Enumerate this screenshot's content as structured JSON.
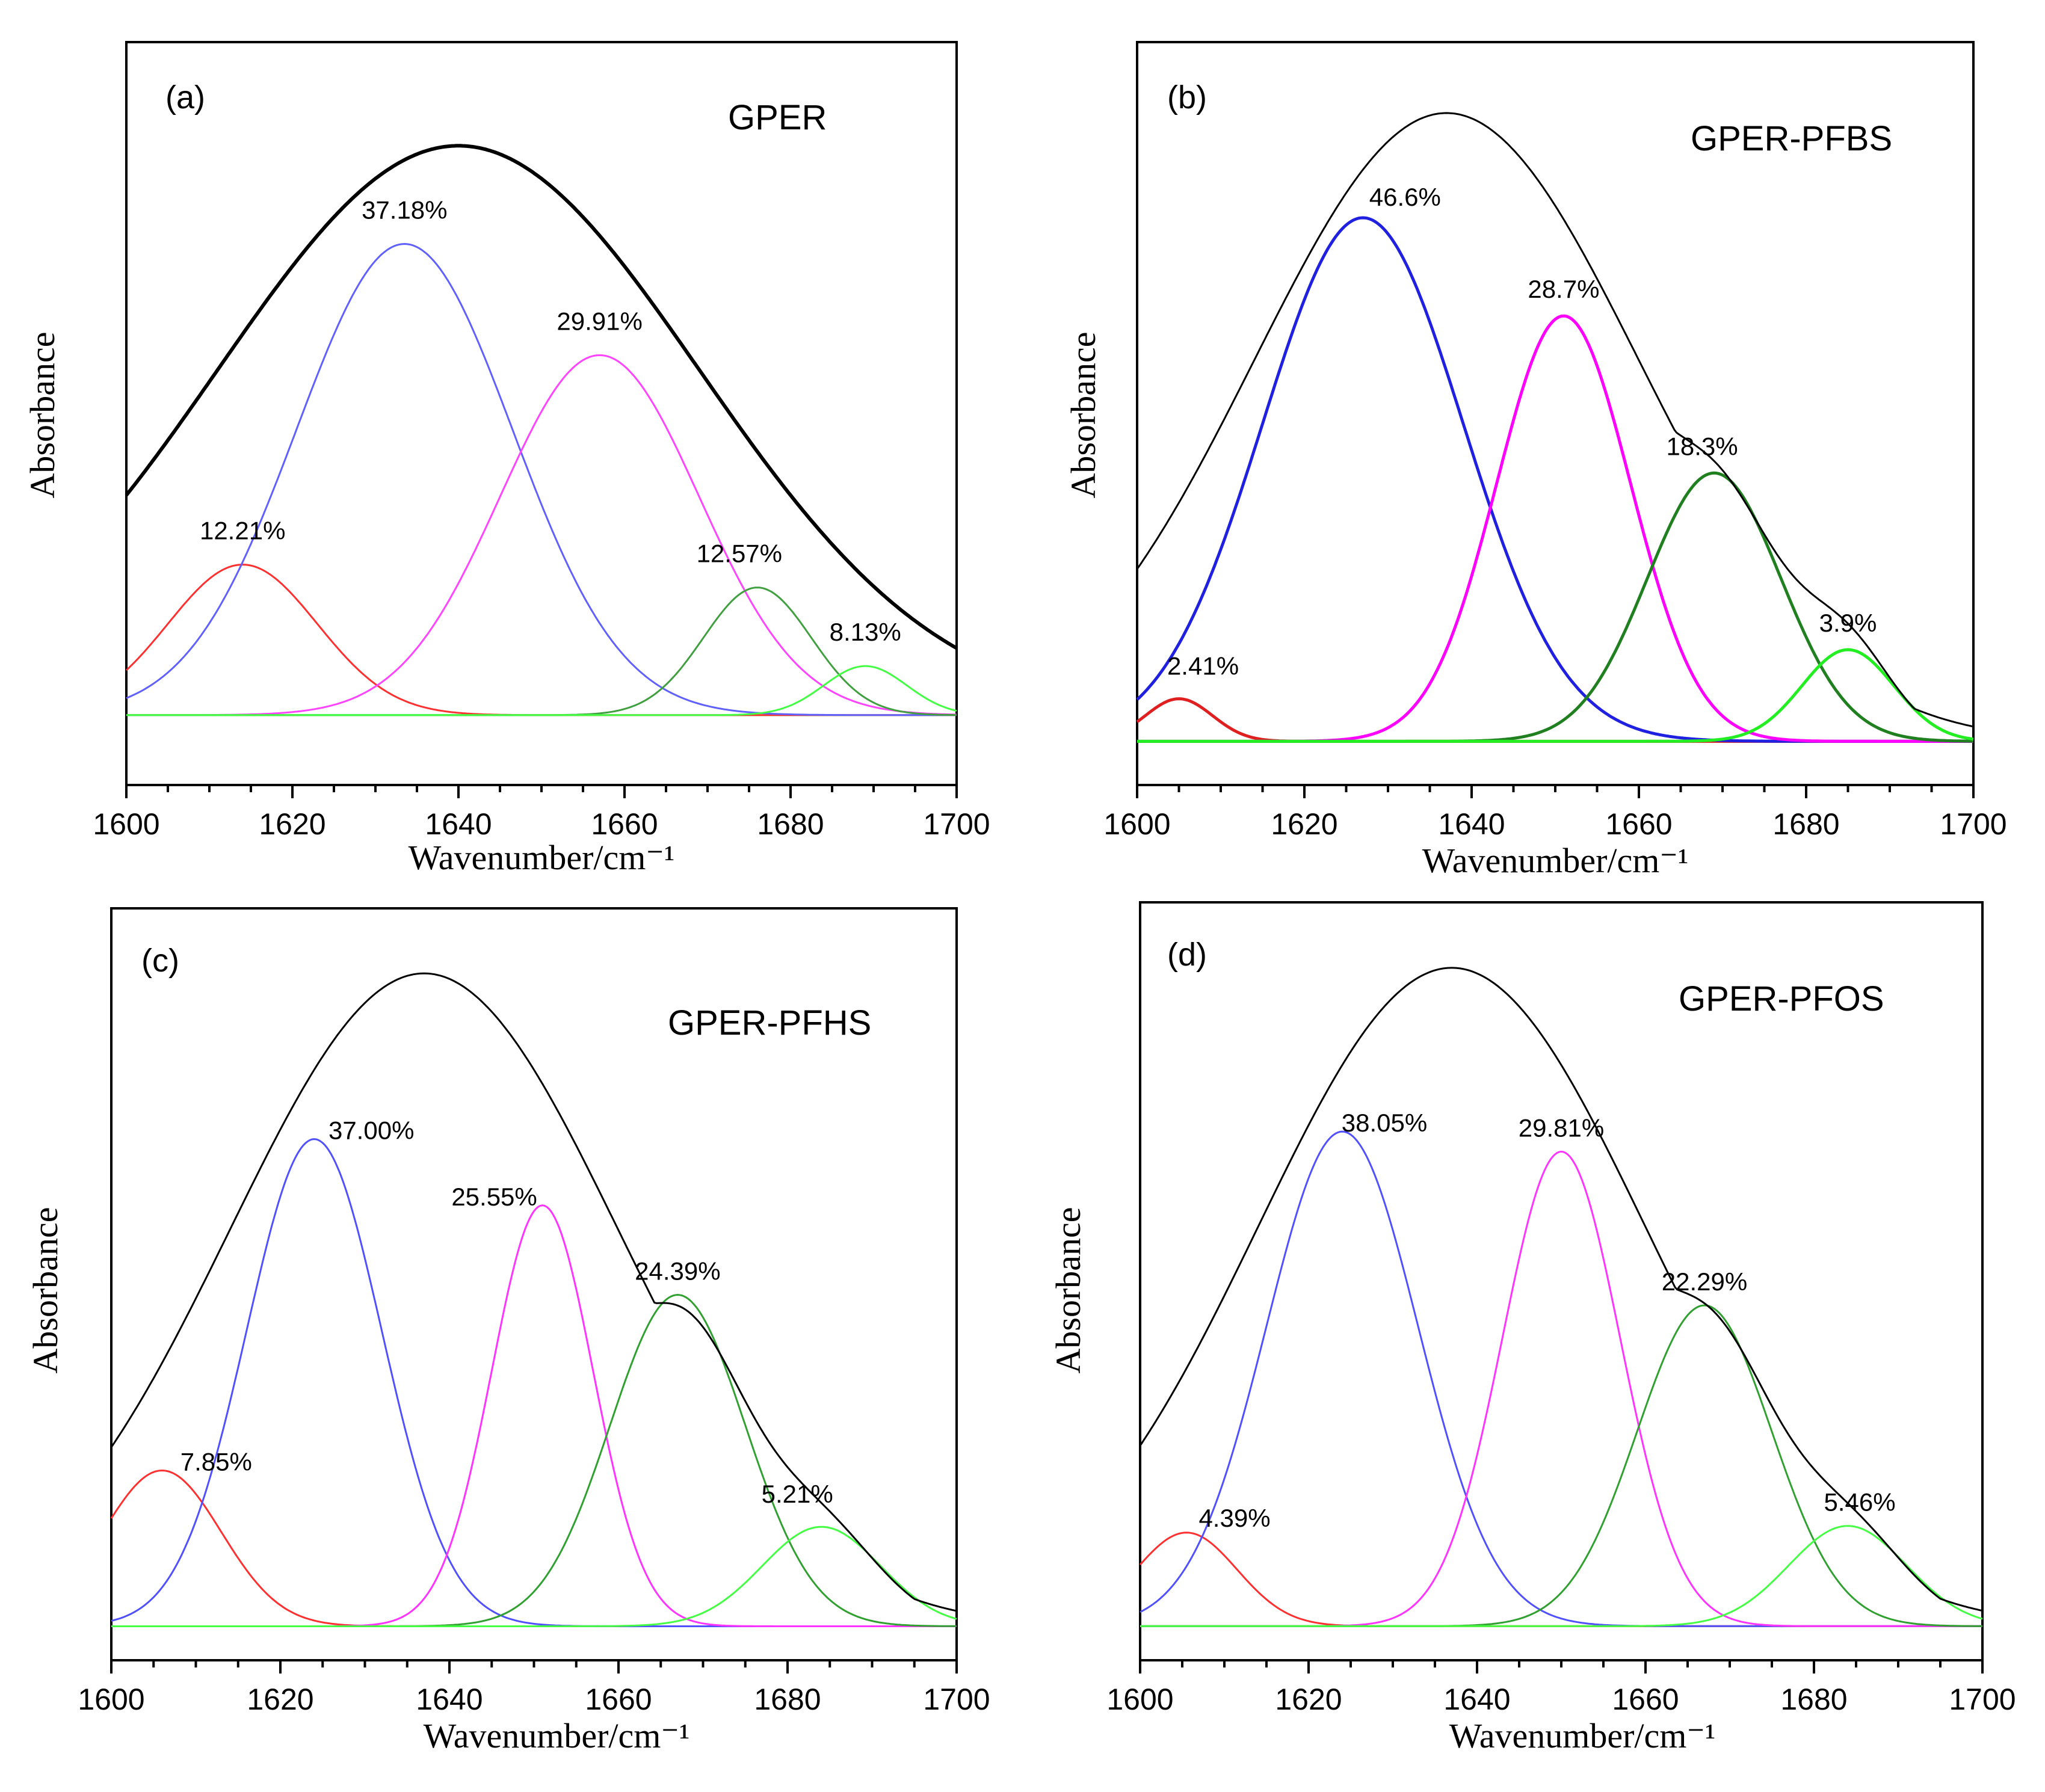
{
  "chart_data": [
    {
      "type": "line",
      "panel_label": "(a)",
      "title": "GPER",
      "xlabel": "Wavenumber/cm⁻¹",
      "ylabel": "Absorbance",
      "xlim": [
        1600,
        1700
      ],
      "xticks": [
        "1600",
        "1620",
        "1640",
        "1660",
        "1680",
        "1700"
      ],
      "ylim": [
        0,
        1.08
      ],
      "baseline": 0.07,
      "envelope": {
        "name": "envelope",
        "color": "#000000",
        "center": 1640,
        "height": 0.87,
        "width": 29,
        "extra_width_left": 0
      },
      "series": [
        {
          "name": "12.21%",
          "label": "12.21%",
          "center": 1614,
          "height": 0.23,
          "width": 9,
          "color": "#ff3030"
        },
        {
          "name": "37.18%",
          "label": "37.18%",
          "center": 1633.5,
          "height": 0.72,
          "width": 13,
          "color": "#6060ff"
        },
        {
          "name": "29.91%",
          "label": "29.91%",
          "center": 1657,
          "height": 0.55,
          "width": 12,
          "color": "#ff44ff"
        },
        {
          "name": "12.57%",
          "label": "12.57%",
          "center": 1676,
          "height": 0.195,
          "width": 6.5,
          "color": "#40a040"
        },
        {
          "name": "8.13%",
          "label": "8.13%",
          "center": 1689,
          "height": 0.075,
          "width": 5,
          "color": "#44ff44"
        }
      ]
    },
    {
      "type": "line",
      "panel_label": "(b)",
      "title": "GPER-PFBS",
      "xlabel": "Wavenumber/cm⁻¹",
      "ylabel": "Absorbance",
      "xlim": [
        1600,
        1700
      ],
      "xticks": [
        "1600",
        "1620",
        "1640",
        "1660",
        "1680",
        "1700"
      ],
      "ylim": [
        0,
        1.08
      ],
      "baseline": 0.03,
      "envelope": {
        "name": "envelope",
        "color": "#000000",
        "center": 1637,
        "height": 0.96,
        "width": 23,
        "extra_width_left": 0
      },
      "series": [
        {
          "name": "2.41%",
          "label": "2.41%",
          "center": 1605,
          "height": 0.065,
          "width": 4,
          "color": "#e02020"
        },
        {
          "name": "46.6%",
          "label": "46.6%",
          "center": 1627,
          "height": 0.8,
          "width": 12,
          "color": "#2020e0"
        },
        {
          "name": "28.7%",
          "label": "28.7%",
          "center": 1651,
          "height": 0.65,
          "width": 8,
          "color": "#ff00ff"
        },
        {
          "name": "18.3%",
          "label": "18.3%",
          "center": 1669,
          "height": 0.41,
          "width": 8,
          "color": "#208020"
        },
        {
          "name": "3.9%",
          "label": "3.9%",
          "center": 1685,
          "height": 0.14,
          "width": 5.5,
          "color": "#22ee22"
        }
      ]
    },
    {
      "type": "line",
      "panel_label": "(c)",
      "title": "GPER-PFHS",
      "xlabel": "Wavenumber/cm⁻¹",
      "ylabel": "Absorbance",
      "xlim": [
        1600,
        1700
      ],
      "xticks": [
        "1600",
        "1620",
        "1640",
        "1660",
        "1680",
        "1700"
      ],
      "ylim": [
        0,
        1.08
      ],
      "baseline": 0.015,
      "envelope": {
        "name": "envelope",
        "color": "#000000",
        "center": 1637,
        "height": 0.985,
        "width": 23,
        "extra_width_left": 0
      },
      "series": [
        {
          "name": "7.85%",
          "label": "7.85%",
          "center": 1606,
          "height": 0.235,
          "width": 7,
          "color": "#ff3030"
        },
        {
          "name": "37.00%",
          "label": "37.00%",
          "center": 1624,
          "height": 0.735,
          "width": 8,
          "color": "#5050ff"
        },
        {
          "name": "25.55%",
          "label": "25.55%",
          "center": 1651,
          "height": 0.635,
          "width": 6,
          "color": "#ff33ff"
        },
        {
          "name": "24.39%",
          "label": "24.39%",
          "center": 1667,
          "height": 0.5,
          "width": 8,
          "color": "#30a030"
        },
        {
          "name": "5.21%",
          "label": "5.21%",
          "center": 1684,
          "height": 0.15,
          "width": 7,
          "color": "#44ff44"
        }
      ]
    },
    {
      "type": "line",
      "panel_label": "(d)",
      "title": "GPER-PFOS",
      "xlabel": "Wavenumber/cm⁻¹",
      "ylabel": "Absorbance",
      "xlim": [
        1600,
        1700
      ],
      "xticks": [
        "1600",
        "1620",
        "1640",
        "1660",
        "1680",
        "1700"
      ],
      "ylim": [
        0,
        1.08
      ],
      "baseline": 0.015,
      "envelope": {
        "name": "envelope",
        "color": "#000000",
        "center": 1637,
        "height": 0.985,
        "width": 23,
        "extra_width_left": 0
      },
      "series": [
        {
          "name": "4.39%",
          "label": "4.39%",
          "center": 1605.5,
          "height": 0.14,
          "width": 6,
          "color": "#ff3030"
        },
        {
          "name": "38.05%",
          "label": "38.05%",
          "center": 1624,
          "height": 0.74,
          "width": 9,
          "color": "#5050ff"
        },
        {
          "name": "29.81%",
          "label": "29.81%",
          "center": 1650,
          "height": 0.71,
          "width": 7,
          "color": "#ff33ff"
        },
        {
          "name": "22.29%",
          "label": "22.29%",
          "center": 1667,
          "height": 0.48,
          "width": 8,
          "color": "#30a030"
        },
        {
          "name": "5.46%",
          "label": "5.46%",
          "center": 1684,
          "height": 0.15,
          "width": 7,
          "color": "#44ff44"
        }
      ]
    }
  ]
}
